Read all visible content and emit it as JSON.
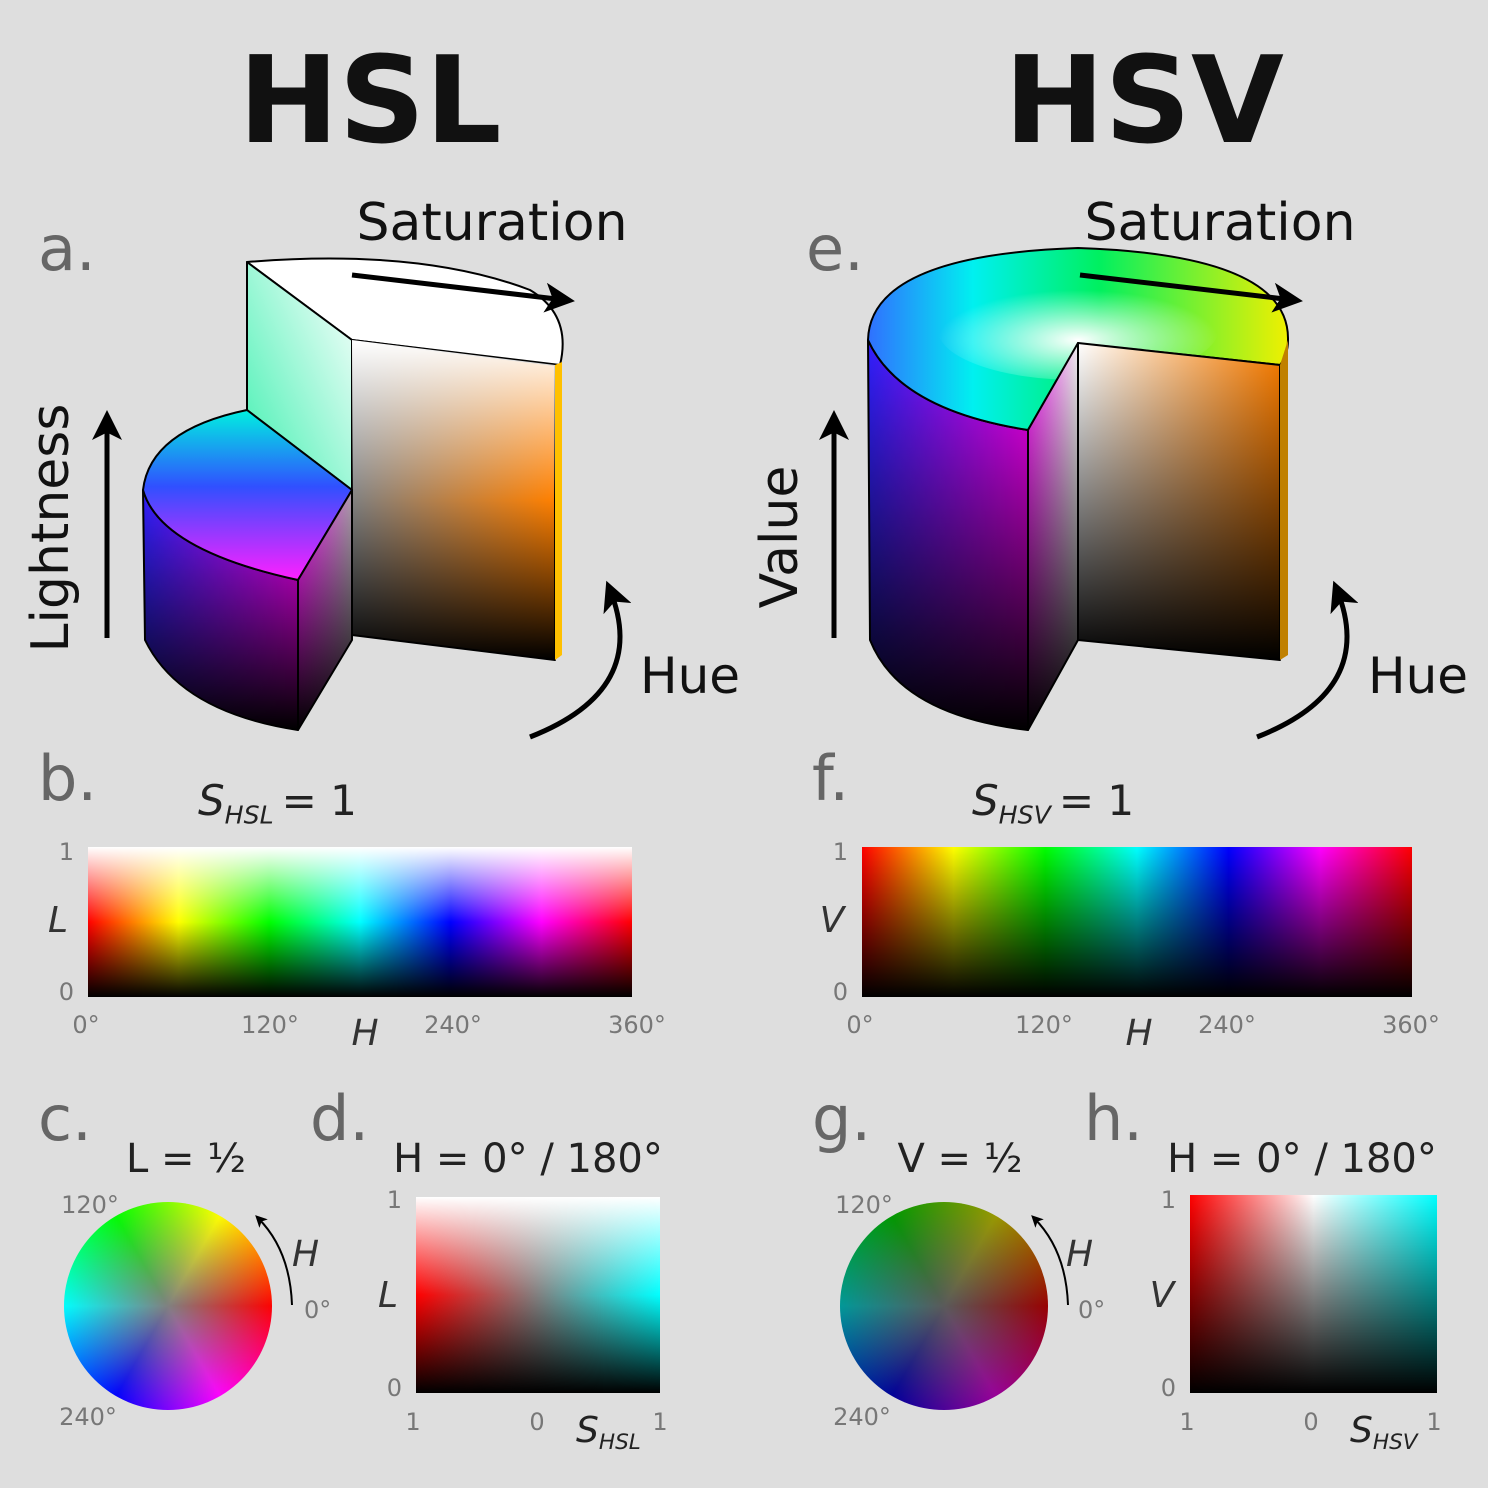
{
  "hsl": {
    "title": "HSL",
    "a": {
      "letter": "a.",
      "saturation": "Saturation",
      "axis": "Lightness",
      "hue": "Hue"
    },
    "b": {
      "letter": "b.",
      "symbol": "S",
      "subscript": "HSL",
      "equals": "= 1",
      "y_label": "L",
      "y_max": "1",
      "y_min": "0",
      "x_ticks": [
        "0°",
        "120°",
        "240°",
        "360°"
      ],
      "x_label": "H"
    },
    "c": {
      "letter": "c.",
      "label": "L = ½",
      "top_label": "120°",
      "bottom_label": "240°",
      "arrow_label": "H",
      "zero_label": "0°"
    },
    "d": {
      "letter": "d.",
      "label": "H = 0° / 180°",
      "y_label": "L",
      "y_max": "1",
      "y_min": "0",
      "x_ticks": [
        "1",
        "0",
        "1"
      ],
      "x_symbol": "S",
      "x_subscript": "HSL"
    }
  },
  "hsv": {
    "title": "HSV",
    "a": {
      "letter": "e.",
      "saturation": "Saturation",
      "axis": "Value",
      "hue": "Hue"
    },
    "b": {
      "letter": "f.",
      "symbol": "S",
      "subscript": "HSV",
      "equals": "= 1",
      "y_label": "V",
      "y_max": "1",
      "y_min": "0",
      "x_ticks": [
        "0°",
        "120°",
        "240°",
        "360°"
      ],
      "x_label": "H"
    },
    "c": {
      "letter": "g.",
      "label": "V = ½",
      "top_label": "120°",
      "bottom_label": "240°",
      "arrow_label": "H",
      "zero_label": "0°"
    },
    "d": {
      "letter": "h.",
      "label": "H = 0° / 180°",
      "y_label": "V",
      "y_max": "1",
      "y_min": "0",
      "x_ticks": [
        "1",
        "0",
        "1"
      ],
      "x_symbol": "S",
      "x_subscript": "HSV"
    }
  }
}
